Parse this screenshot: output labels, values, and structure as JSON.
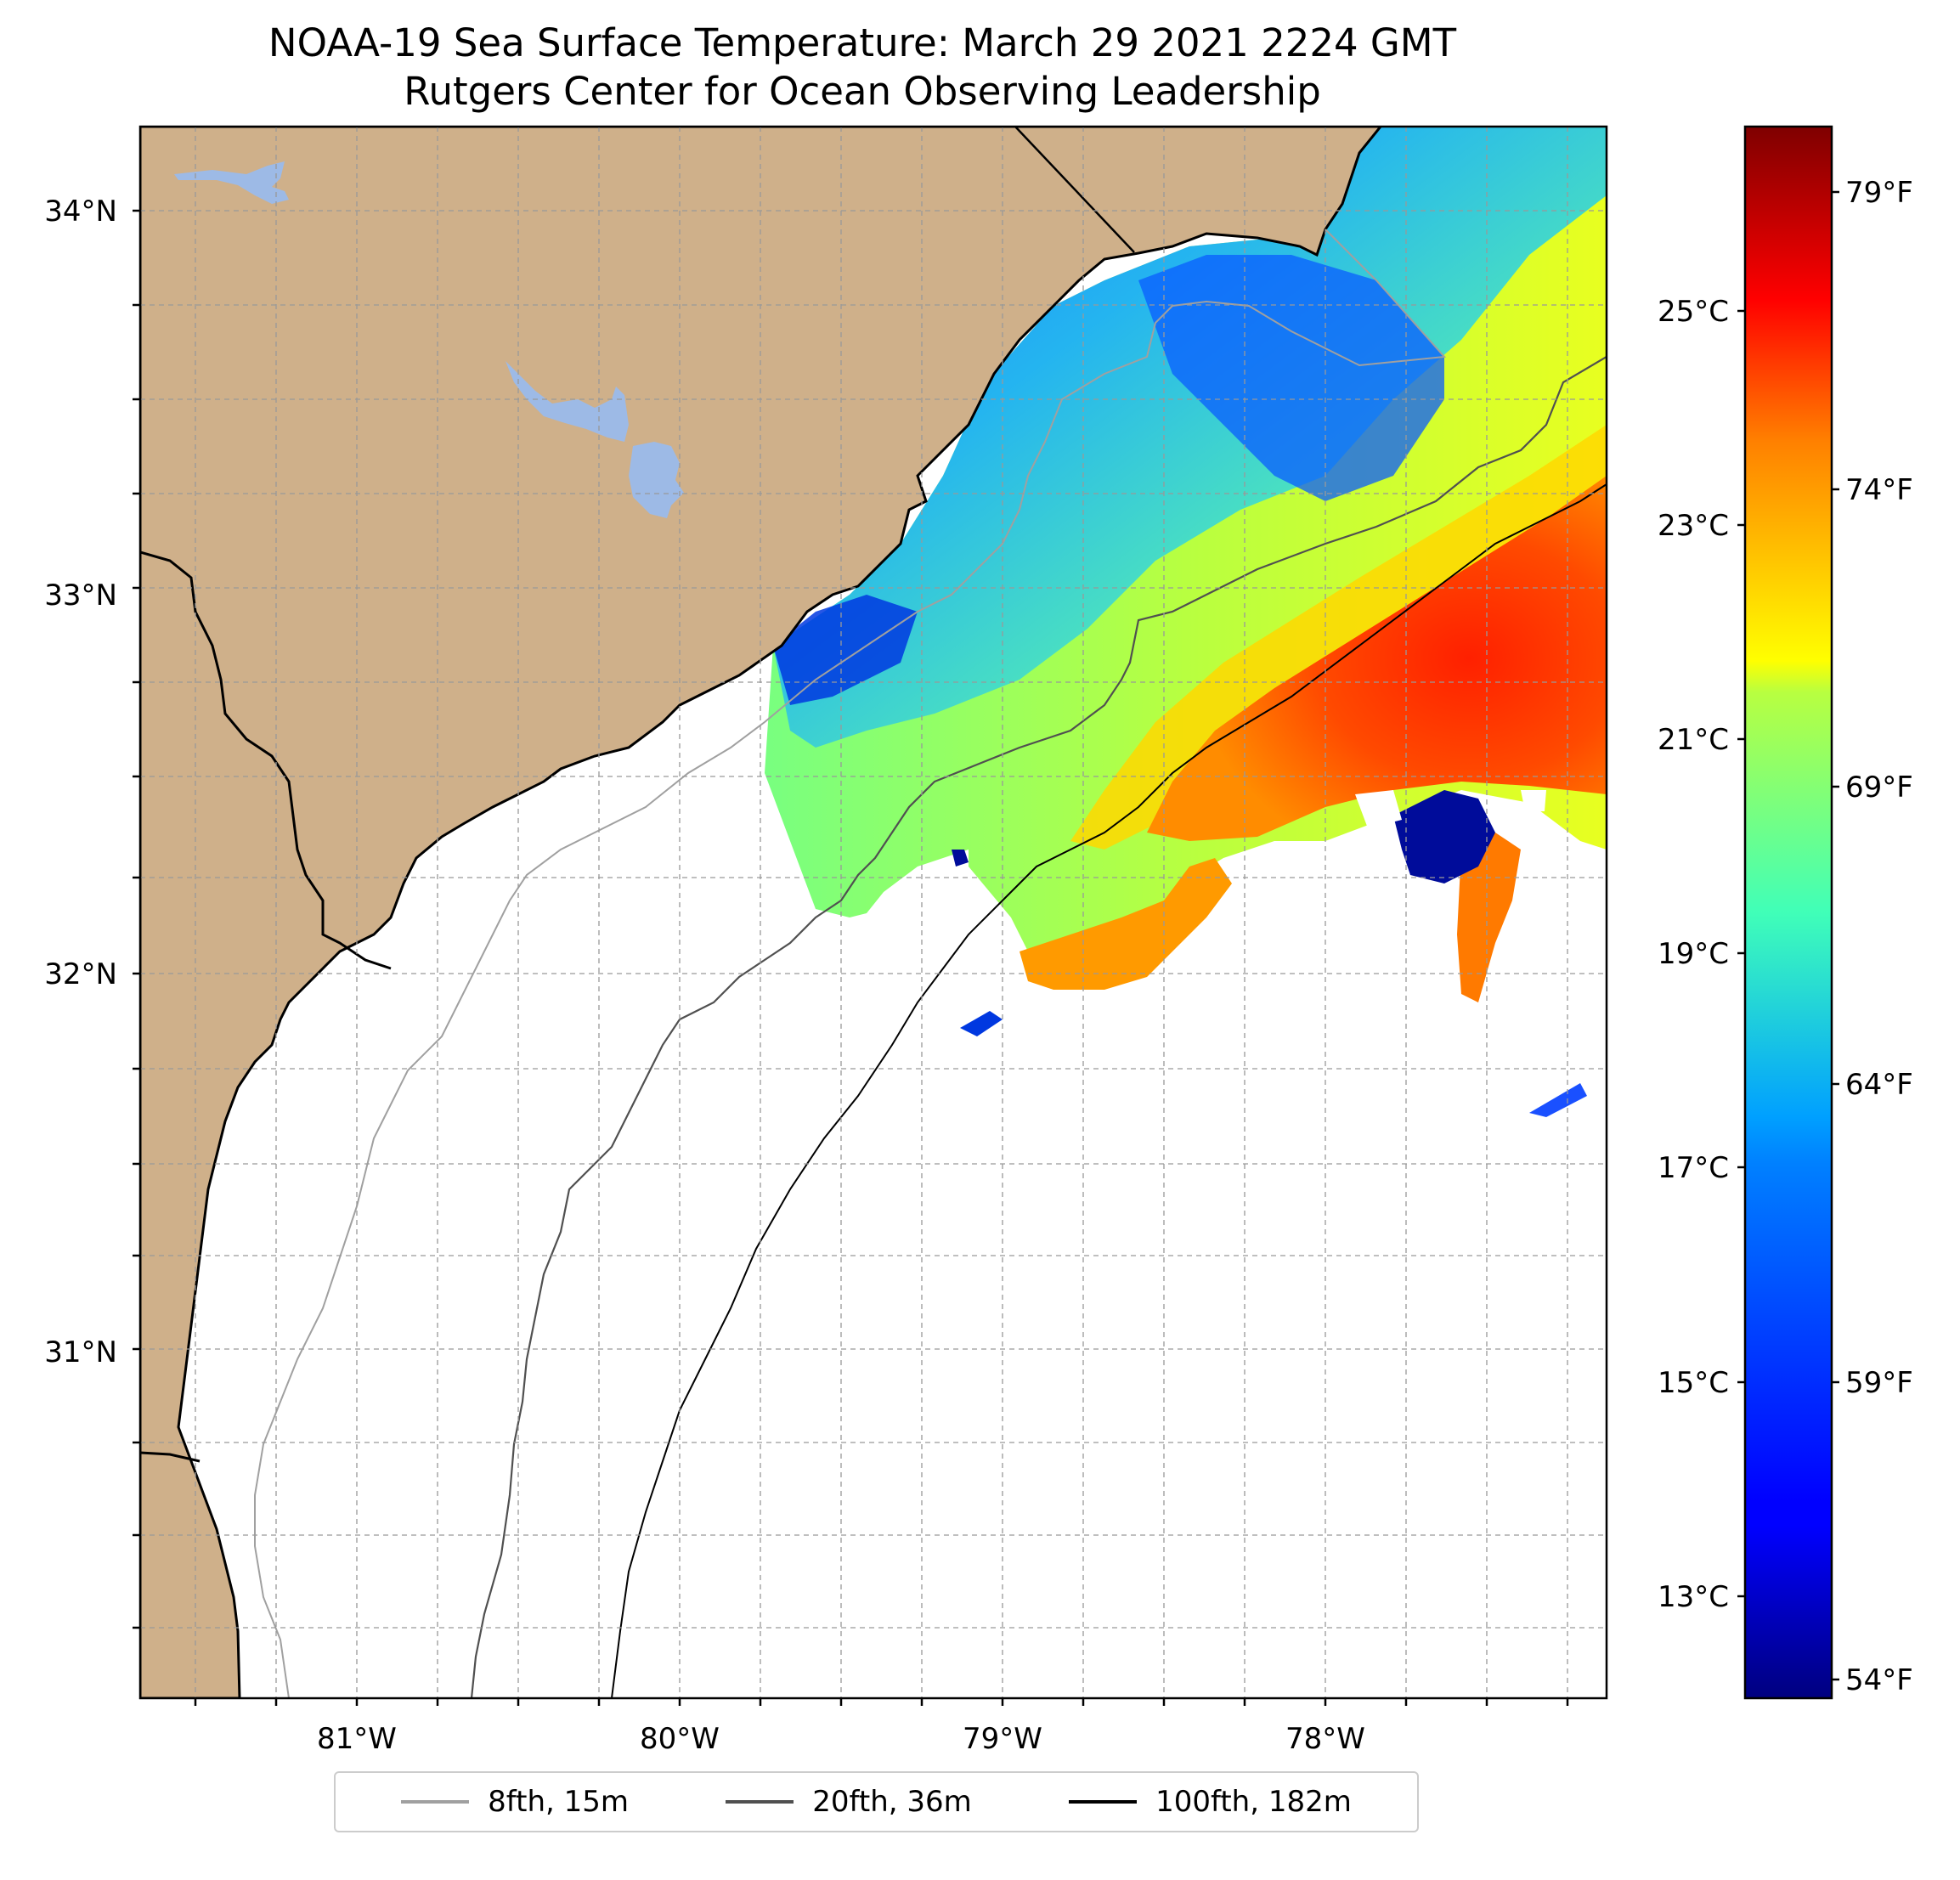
{
  "title": {
    "line1": "NOAA-19 Sea Surface Temperature: March 29 2021 2224 GMT",
    "line2": "Rutgers Center for Ocean Observing Leadership"
  },
  "map": {
    "lat_labels": [
      "34°N",
      "33°N",
      "32°N",
      "31°N"
    ],
    "lon_labels": [
      "81°W",
      "80°W",
      "79°W",
      "78°W"
    ],
    "lat_values": [
      34,
      33,
      32,
      31
    ],
    "lon_values": [
      -81,
      -80,
      -79,
      -78
    ],
    "extent": {
      "lon": [
        -81.67,
        -77.13
      ],
      "lat": [
        30.07,
        34.22
      ]
    },
    "colors": {
      "land": "#cfb08a",
      "lakes": "#9dbae6",
      "ocean": "#ffffff"
    }
  },
  "colorbar": {
    "colormap": "jet",
    "celsius_labels": [
      "25°C",
      "23°C",
      "21°C",
      "19°C",
      "17°C",
      "15°C",
      "13°C"
    ],
    "celsius_values": [
      25,
      23,
      21,
      19,
      17,
      15,
      13
    ],
    "fahrenheit_labels": [
      "79°F",
      "74°F",
      "69°F",
      "64°F",
      "59°F",
      "54°F"
    ],
    "fahrenheit_values": [
      79,
      74,
      69,
      64,
      59,
      54
    ],
    "range_f": [
      53.8,
      80.7
    ]
  },
  "legend": {
    "position": "bottom-center",
    "items": [
      {
        "label": "8fth, 15m",
        "color": "#a0a0a0"
      },
      {
        "label": "20fth, 36m",
        "color": "#505050"
      },
      {
        "label": "100fth, 182m",
        "color": "#000000"
      }
    ]
  }
}
